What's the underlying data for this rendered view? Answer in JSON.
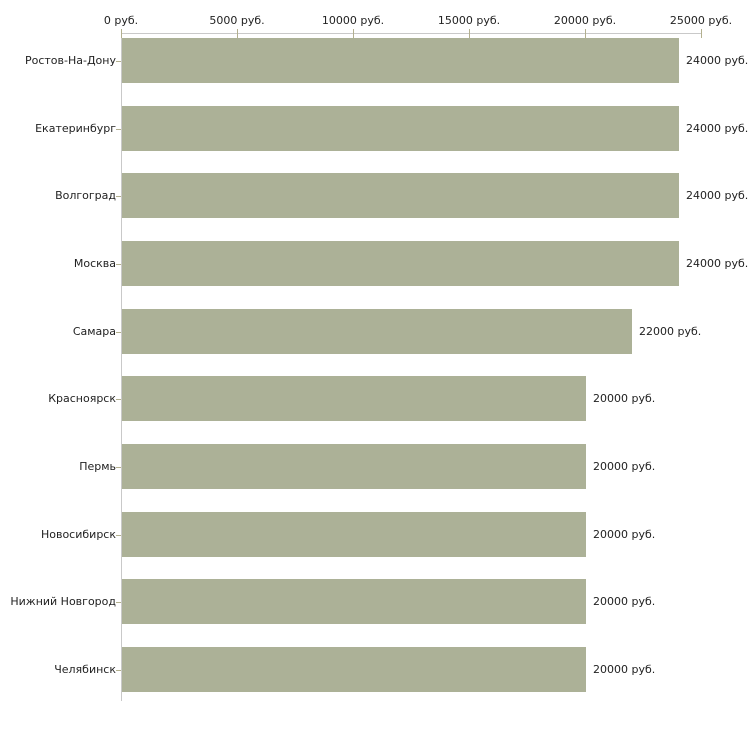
{
  "chart_data": {
    "type": "bar",
    "orientation": "horizontal",
    "title": "",
    "xlabel": "",
    "ylabel": "",
    "unit": "руб.",
    "xlim": [
      0,
      25000
    ],
    "grid": false,
    "legend": null,
    "categories": [
      "Ростов-На-Дону",
      "Екатеринбург",
      "Волгоград",
      "Москва",
      "Самара",
      "Красноярск",
      "Пермь",
      "Новосибирск",
      "Нижний Новгород",
      "Челябинск"
    ],
    "values": [
      24000,
      24000,
      24000,
      24000,
      22000,
      20000,
      20000,
      20000,
      20000,
      20000
    ],
    "value_labels": [
      "24000 руб.",
      "24000 руб.",
      "24000 руб.",
      "24000 руб.",
      "22000 руб.",
      "20000 руб.",
      "20000 руб.",
      "20000 руб.",
      "20000 руб.",
      "20000 руб."
    ],
    "x_ticks": [
      {
        "value": 0,
        "label": "0 руб."
      },
      {
        "value": 5000,
        "label": "5000 руб."
      },
      {
        "value": 10000,
        "label": "10000 руб."
      },
      {
        "value": 15000,
        "label": "15000 руб."
      },
      {
        "value": 20000,
        "label": "20000 руб."
      },
      {
        "value": 25000,
        "label": "25000 руб."
      }
    ],
    "colors": {
      "bar": "#acb197",
      "axis_line": "#c9c9c9",
      "tick_mark": "#b3b08f",
      "text": "#222222",
      "background": "#ffffff"
    }
  }
}
